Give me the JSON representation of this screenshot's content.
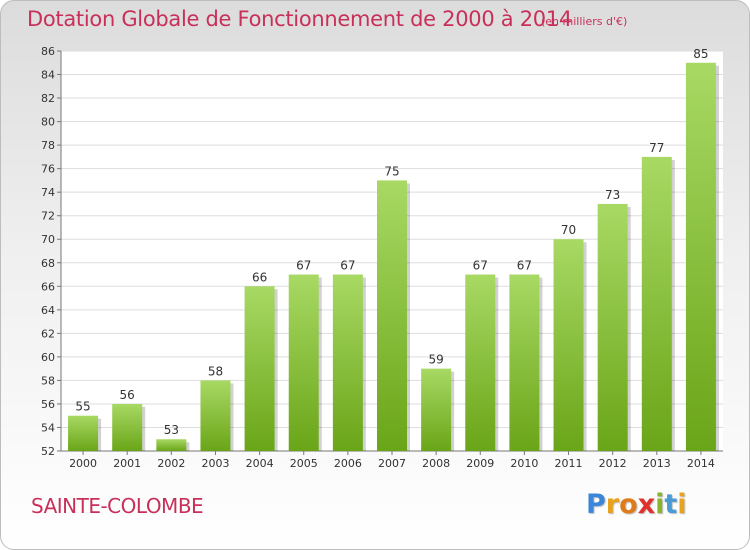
{
  "title": "Dotation Globale de Fonctionnement de 2000 à 2014",
  "unit_note": "(en milliers d'€)",
  "commune": "SAINTE-COLOMBE",
  "logo": {
    "letters": [
      "P",
      "r",
      "o",
      "x",
      "i",
      "t",
      "i"
    ],
    "colors": [
      "#3a86d8",
      "#e8a21c",
      "#e07b1a",
      "#e2302c",
      "#8ab528",
      "#4a9ad6",
      "#e8a21c"
    ]
  },
  "colors": {
    "bar_light": "#a8d964",
    "bar_dark": "#6aa518",
    "text": "#c8305a",
    "axis_text": "#333333"
  },
  "chart_data": {
    "type": "bar",
    "title": "Dotation Globale de Fonctionnement de 2000 à 2014",
    "categories": [
      "2000",
      "2001",
      "2002",
      "2003",
      "2004",
      "2005",
      "2006",
      "2007",
      "2008",
      "2009",
      "2010",
      "2011",
      "2012",
      "2013",
      "2014"
    ],
    "values": [
      55,
      56,
      53,
      58,
      66,
      67,
      67,
      75,
      59,
      67,
      67,
      70,
      73,
      77,
      85
    ],
    "ylim": [
      52,
      86
    ],
    "yticks": [
      52,
      54,
      56,
      58,
      60,
      62,
      64,
      66,
      68,
      70,
      72,
      74,
      76,
      78,
      80,
      82,
      84,
      86
    ],
    "grid": true,
    "xlabel": "",
    "ylabel": ""
  }
}
